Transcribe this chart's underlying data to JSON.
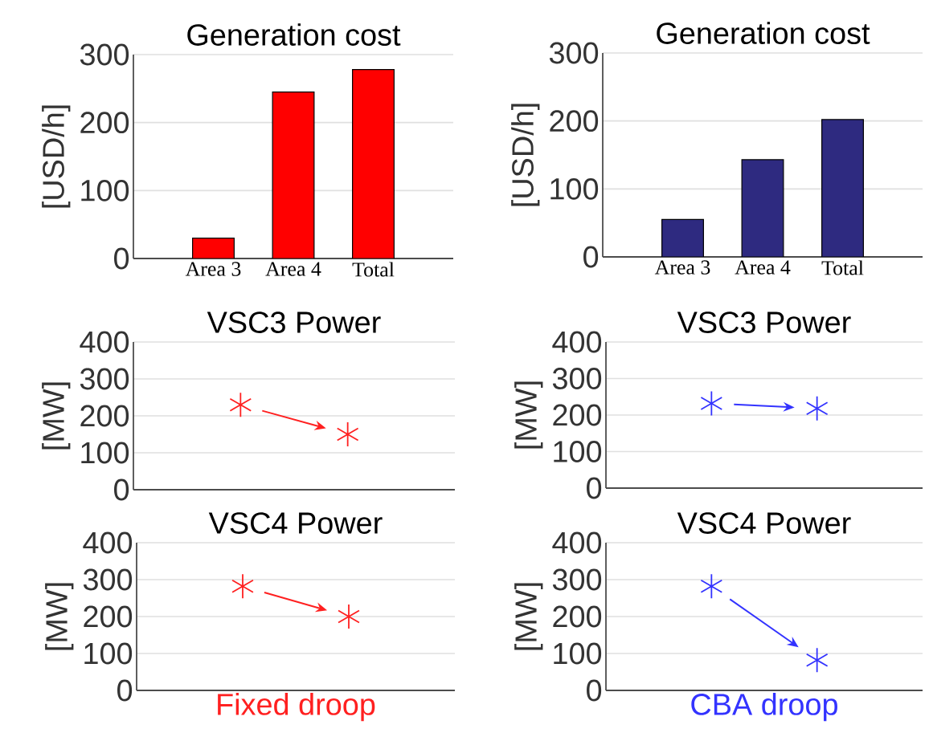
{
  "chart_data": [
    {
      "type": "bar",
      "title": "Generation cost",
      "ylabel": "[USD/h]",
      "categories": [
        "Area 3",
        "Area 4",
        "Total"
      ],
      "values": [
        30,
        245,
        278
      ],
      "color": "#ff0000",
      "ylim": [
        0,
        300
      ],
      "yticks": [
        0,
        100,
        200,
        300
      ],
      "grid": "y"
    },
    {
      "type": "bar",
      "title": "Generation cost",
      "ylabel": "[USD/h]",
      "categories": [
        "Area 3",
        "Area 4",
        "Total"
      ],
      "values": [
        55,
        143,
        202
      ],
      "color": "#2e2a80",
      "ylim": [
        0,
        300
      ],
      "yticks": [
        0,
        100,
        200,
        300
      ],
      "grid": "y"
    },
    {
      "type": "scatter",
      "title": "VSC3 Power",
      "ylabel": "[MW]",
      "categories": [
        null,
        null
      ],
      "values": [
        230,
        150
      ],
      "color": "#ff2020",
      "marker": "cross",
      "ylim": [
        0,
        400
      ],
      "yticks": [
        0,
        100,
        200,
        300,
        400
      ],
      "grid": "y",
      "tick_labels": "y"
    },
    {
      "type": "scatter",
      "title": "VSC3 Power",
      "ylabel": "[MW]",
      "categories": [
        null,
        null
      ],
      "values": [
        232,
        218
      ],
      "color": "#3333ff",
      "marker": "cross",
      "ylim": [
        0,
        400
      ],
      "yticks": [
        0,
        100,
        200,
        300,
        400
      ],
      "grid": "y",
      "tick_labels": "y"
    },
    {
      "type": "scatter",
      "title": "VSC4 Power",
      "ylabel": "[MW]",
      "xlabel": "Fixed droop",
      "categories": [
        null,
        null
      ],
      "values": [
        282,
        200
      ],
      "color": "#ff2020",
      "marker": "cross",
      "ylim": [
        0,
        400
      ],
      "yticks": [
        0,
        100,
        200,
        300,
        400
      ],
      "grid": "y",
      "tick_labels": "y"
    },
    {
      "type": "scatter",
      "title": "VSC4 Power",
      "ylabel": "[MW]",
      "xlabel": "CBA droop",
      "categories": [
        null,
        null
      ],
      "values": [
        282,
        82
      ],
      "color": "#3333ff",
      "marker": "cross",
      "ylim": [
        0,
        400
      ],
      "yticks": [
        0,
        100,
        200,
        300,
        400
      ],
      "grid": "y",
      "tick_labels": "y"
    }
  ]
}
